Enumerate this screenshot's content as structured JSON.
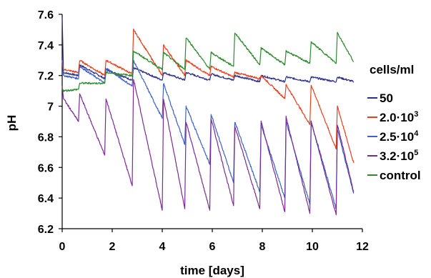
{
  "chart_data": {
    "type": "line",
    "xlabel": "time [days]",
    "ylabel": "pH",
    "xlim": [
      0,
      12
    ],
    "ylim": [
      6.2,
      7.6
    ],
    "xticks": [
      "0",
      "2",
      "4",
      "6",
      "8",
      "10",
      "12"
    ],
    "yticks": [
      "6.2",
      "6.4",
      "6.6",
      "6.8",
      "7",
      "7.2",
      "7.4",
      "7.6"
    ],
    "grid": false,
    "legend": {
      "title": "cells/ml",
      "position": "right",
      "entries": [
        {
          "base": "50",
          "sup": "",
          "color": "#2c2c8c"
        },
        {
          "base": "2.0·10",
          "sup": "3",
          "color": "#e8401c"
        },
        {
          "base": "2.5·10",
          "sup": "4",
          "color": "#3b62c4"
        },
        {
          "base": "3.2·10",
          "sup": "5",
          "color": "#7a2c94"
        },
        {
          "base": "control",
          "sup": "",
          "color": "#2f8a2f"
        }
      ]
    },
    "feed_times": [
      0.65,
      1.7,
      2.8,
      4.0,
      4.9,
      5.9,
      6.85,
      7.9,
      8.9,
      9.9,
      10.95
    ],
    "series": [
      {
        "name": "50",
        "color": "#2c2c8c",
        "x": [
          0,
          0.05,
          0.65,
          0.7,
          1.7,
          1.75,
          2.8,
          2.85,
          4.0,
          4.05,
          4.9,
          4.95,
          5.9,
          5.95,
          6.85,
          6.9,
          7.9,
          7.95,
          8.9,
          8.95,
          9.9,
          9.95,
          10.95,
          11.0,
          11.65
        ],
        "y": [
          7.58,
          7.22,
          7.2,
          7.27,
          7.18,
          7.24,
          7.17,
          7.25,
          7.17,
          7.22,
          7.17,
          7.22,
          7.17,
          7.21,
          7.17,
          7.2,
          7.16,
          7.2,
          7.16,
          7.19,
          7.16,
          7.19,
          7.16,
          7.19,
          7.16
        ]
      },
      {
        "name": "2.0·10^3",
        "color": "#e8401c",
        "x": [
          0,
          0.05,
          0.65,
          0.7,
          1.7,
          1.75,
          2.8,
          2.85,
          4.0,
          4.05,
          4.9,
          4.95,
          5.9,
          5.95,
          6.85,
          6.9,
          7.9,
          7.95,
          8.9,
          8.95,
          9.9,
          9.95,
          10.95,
          11.0,
          11.65
        ],
        "y": [
          7.3,
          7.24,
          7.22,
          7.3,
          7.2,
          7.3,
          7.21,
          7.5,
          7.2,
          7.4,
          7.2,
          7.3,
          7.2,
          7.26,
          7.19,
          7.22,
          7.18,
          7.2,
          7.05,
          7.14,
          6.88,
          7.14,
          6.72,
          7.0,
          6.63
        ]
      },
      {
        "name": "2.5·10^4",
        "color": "#3b62c4",
        "x": [
          0,
          0.05,
          0.65,
          0.7,
          1.7,
          1.75,
          2.8,
          2.85,
          4.0,
          4.05,
          4.9,
          4.95,
          5.9,
          5.95,
          6.85,
          6.9,
          7.9,
          7.95,
          8.9,
          8.95,
          9.9,
          9.95,
          10.95,
          11.0,
          11.65
        ],
        "y": [
          7.3,
          7.2,
          7.18,
          7.26,
          7.15,
          7.25,
          7.13,
          7.3,
          6.92,
          7.15,
          6.75,
          7.0,
          6.62,
          6.95,
          6.5,
          6.9,
          6.44,
          6.88,
          6.4,
          6.9,
          6.36,
          6.9,
          6.33,
          6.85,
          6.43
        ]
      },
      {
        "name": "3.2·10^5",
        "color": "#7a2c94",
        "x": [
          0,
          0.05,
          0.65,
          0.7,
          1.7,
          1.75,
          2.8,
          2.85,
          4.0,
          4.05,
          4.9,
          4.95,
          5.9,
          5.95,
          6.85,
          6.9,
          7.9,
          7.95,
          8.9,
          8.95,
          9.9,
          9.95,
          10.95,
          11.0,
          11.65
        ],
        "y": [
          7.13,
          7.05,
          6.9,
          7.08,
          6.68,
          7.05,
          6.48,
          7.18,
          6.32,
          7.05,
          6.33,
          6.9,
          6.32,
          6.92,
          6.35,
          6.87,
          6.33,
          6.9,
          6.31,
          6.93,
          6.3,
          6.9,
          6.29,
          6.88,
          6.44
        ]
      },
      {
        "name": "control",
        "color": "#2f8a2f",
        "x": [
          0,
          0.05,
          0.65,
          0.7,
          1.7,
          1.75,
          2.8,
          2.85,
          4.0,
          4.05,
          4.9,
          4.95,
          5.9,
          5.95,
          6.85,
          6.9,
          7.9,
          7.95,
          8.9,
          8.95,
          9.9,
          9.95,
          10.95,
          11.0,
          11.65
        ],
        "y": [
          7.12,
          7.1,
          7.11,
          7.15,
          7.15,
          7.22,
          7.2,
          7.36,
          7.24,
          7.35,
          7.24,
          7.45,
          7.24,
          7.35,
          7.26,
          7.48,
          7.27,
          7.38,
          7.27,
          7.36,
          7.28,
          7.42,
          7.28,
          7.48,
          7.29
        ]
      }
    ]
  }
}
